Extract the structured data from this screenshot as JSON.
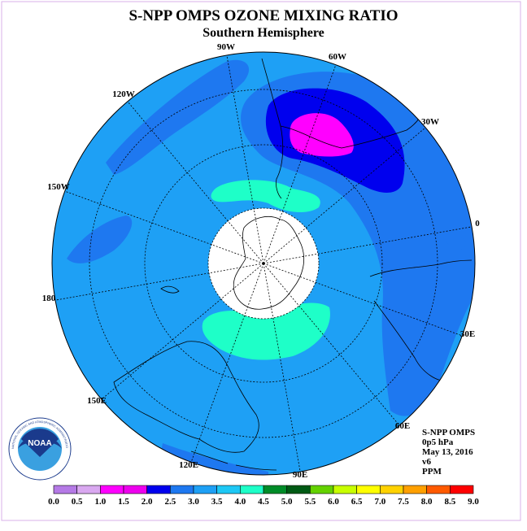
{
  "title": "S-NPP OMPS OZONE MIXING RATIO",
  "subtitle": "Southern Hemisphere",
  "longitude_labels": {
    "lon_90w": "90W",
    "lon_60w": "60W",
    "lon_120w": "120W",
    "lon_30w": "30W",
    "lon_150w": "150W",
    "lon_0": "0",
    "lon_180": "180",
    "lon_30e": "30E",
    "lon_150e": "150E",
    "lon_60e": "60E",
    "lon_120e": "120E",
    "lon_90e": "90E"
  },
  "info": {
    "instrument": "S-NPP OMPS",
    "level": "0p5 hPa",
    "date": "May 13, 2016",
    "version": "v6",
    "units": "PPM"
  },
  "logo": {
    "text": "NOAA",
    "ring_text": "NATIONAL OCEANIC AND ATMOSPHERIC ADMINISTRATION · U.S. DEPARTMENT OF COMMERCE"
  },
  "colorbar": {
    "ticks": [
      "0.0",
      "0.5",
      "1.0",
      "1.5",
      "2.0",
      "2.5",
      "3.0",
      "3.5",
      "4.0",
      "4.5",
      "5.0",
      "5.5",
      "6.0",
      "6.5",
      "7.0",
      "7.5",
      "8.0",
      "8.5",
      "9.0"
    ],
    "colors": [
      "#b57ae6",
      "#d9a8f0",
      "#ff00ff",
      "#ee00ee",
      "#0000ee",
      "#1e78f0",
      "#1ea0f5",
      "#1ec8f5",
      "#1effc8",
      "#008c28",
      "#005a14",
      "#64d200",
      "#c8ff00",
      "#ffff00",
      "#ffd200",
      "#ffa000",
      "#ff5a00",
      "#ff0000",
      "#8c5a3c"
    ]
  },
  "field_colors": {
    "background_band": "#1ea0f5",
    "band_2_5": "#1e78f0",
    "band_3_0": "#1ec8f5",
    "band_3_5": "#1effc8",
    "band_2_0": "#0000ee",
    "band_1_5": "#ff00ff",
    "polar_night": "#ffffff"
  }
}
